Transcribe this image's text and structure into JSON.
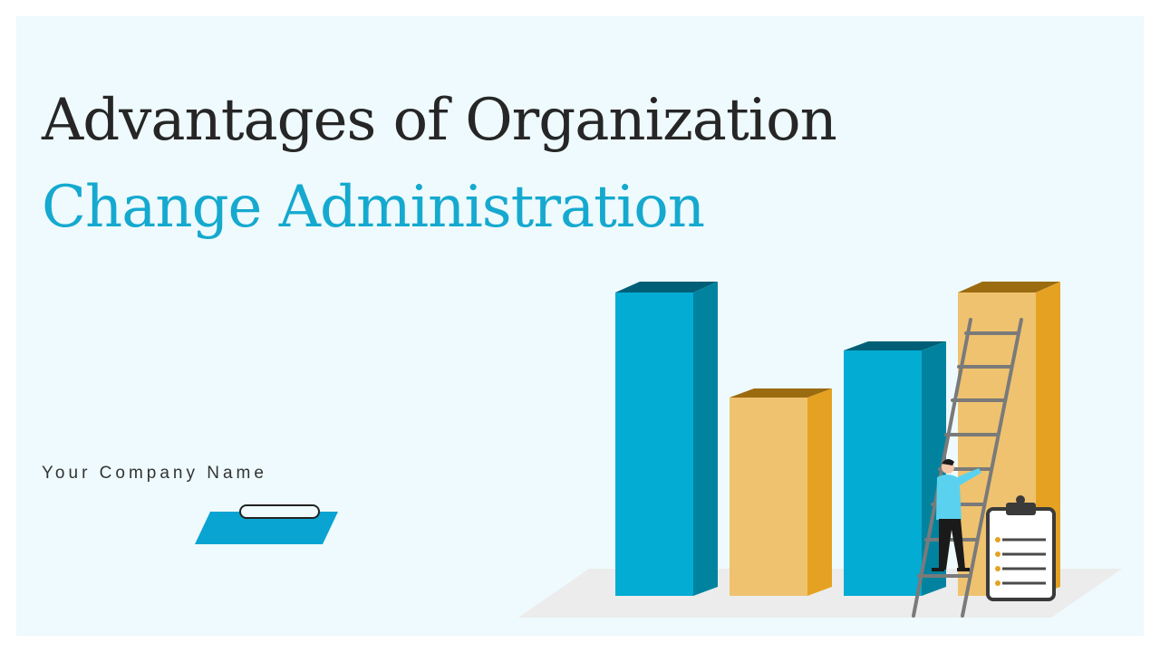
{
  "header": {
    "title_line1": "Advantages of Organization",
    "title_line2": "Change Administration"
  },
  "company": "Your Company Name"
}
